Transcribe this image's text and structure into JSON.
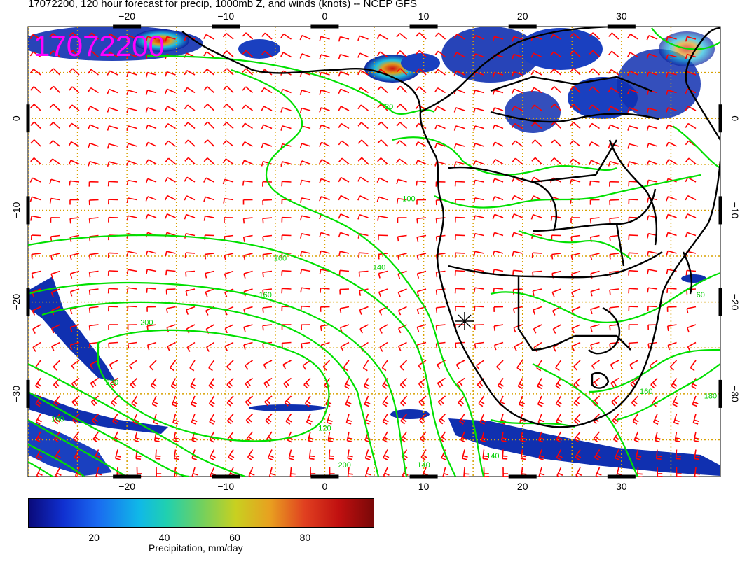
{
  "title": "17072200, 120 hour forecast for precip, 1000mb Z, and winds (knots) -- NCEP GFS",
  "stamp": "17072200",
  "x_ticks": [
    {
      "label": "−20",
      "lon": -20
    },
    {
      "label": "−10",
      "lon": -10
    },
    {
      "label": "0",
      "lon": 0
    },
    {
      "label": "10",
      "lon": 10
    },
    {
      "label": "20",
      "lon": 20
    },
    {
      "label": "30",
      "lon": 30
    }
  ],
  "y_ticks": [
    {
      "label": "0",
      "lat": 0
    },
    {
      "label": "−10",
      "lat": -10
    },
    {
      "label": "−20",
      "lat": -20
    },
    {
      "label": "−30",
      "lat": -30
    }
  ],
  "map_extent": {
    "lon": [
      -30,
      40
    ],
    "lat": [
      -39,
      10
    ]
  },
  "contour_labels": [
    {
      "text": "20",
      "lon": 6.5,
      "lat": 1
    },
    {
      "text": "100",
      "lon": 8.5,
      "lat": -9
    },
    {
      "text": "120",
      "lon": 0,
      "lat": -34
    },
    {
      "text": "140",
      "lon": 5.5,
      "lat": -16.5
    },
    {
      "text": "160",
      "lon": -4.5,
      "lat": -15.5
    },
    {
      "text": "160",
      "lon": -6,
      "lat": -19.5
    },
    {
      "text": "200",
      "lon": -18,
      "lat": -22.5
    },
    {
      "text": "220",
      "lon": -21.5,
      "lat": -29
    },
    {
      "text": "160",
      "lon": -27,
      "lat": -33
    },
    {
      "text": "60",
      "lon": 38,
      "lat": -19.5
    },
    {
      "text": "160",
      "lon": 32.5,
      "lat": -30
    },
    {
      "text": "180",
      "lon": 39,
      "lat": -30.5
    },
    {
      "text": "200",
      "lon": 2,
      "lat": -38
    },
    {
      "text": "140",
      "lon": 10,
      "lat": -38
    },
    {
      "text": "140",
      "lon": 17,
      "lat": -37
    }
  ],
  "colorbar": {
    "ticks": [
      {
        "label": "20",
        "value": 20
      },
      {
        "label": "40",
        "value": 40
      },
      {
        "label": "60",
        "value": 60
      },
      {
        "label": "80",
        "value": 80
      }
    ],
    "range": [
      1,
      99
    ],
    "title": "Precipitation, mm/day"
  },
  "colors": {
    "wind": "#ff0000",
    "contour": "#00e000",
    "grid": "#d8a000",
    "stamp": "#ff00ff",
    "coast": "#000000"
  }
}
